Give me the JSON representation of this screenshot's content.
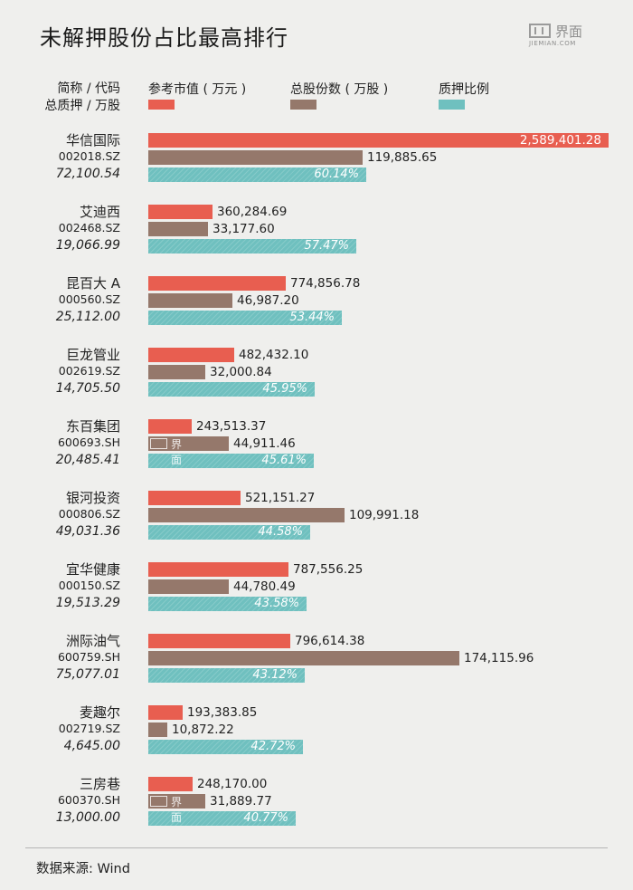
{
  "title": "未解押股份占比最高排行",
  "logo": {
    "cn": "界面",
    "en": "JIEMIAN.COM"
  },
  "header": {
    "line1": "简称 / 代码",
    "line2": "总质押 / 万股"
  },
  "legend": [
    {
      "label": "参考市值 ( 万元 )",
      "color": "#e85e50"
    },
    {
      "label": "总股份数 ( 万股 )",
      "color": "#95786b"
    },
    {
      "label": "质押比例",
      "color": "#6fc0bf"
    }
  ],
  "chart_data": {
    "type": "bar",
    "orientation": "horizontal",
    "title": "未解押股份占比最高排行",
    "series": [
      {
        "name": "参考市值 ( 万元 )",
        "color": "#e85e50",
        "values": [
          2589401.28,
          360284.69,
          774856.78,
          482432.1,
          243513.37,
          521151.27,
          787556.25,
          796614.38,
          193383.85,
          248170.0
        ],
        "labels": [
          "2,589,401.28",
          "360,284.69",
          "774,856.78",
          "482,432.10",
          "243,513.37",
          "521,151.27",
          "787,556.25",
          "796,614.38",
          "193,383.85",
          "248,170.00"
        ]
      },
      {
        "name": "总股份数 ( 万股 )",
        "color": "#95786b",
        "values": [
          119885.65,
          33177.6,
          46987.2,
          32000.84,
          44911.46,
          109991.18,
          44780.49,
          174115.96,
          10872.22,
          31889.77
        ],
        "labels": [
          "119,885.65",
          "33,177.60",
          "46,987.20",
          "32,000.84",
          "44,911.46",
          "109,991.18",
          "44,780.49",
          "174,115.96",
          "10,872.22",
          "31,889.77"
        ]
      },
      {
        "name": "质押比例",
        "color": "#6fc0bf",
        "values": [
          60.14,
          57.47,
          53.44,
          45.95,
          45.61,
          44.58,
          43.58,
          43.12,
          42.72,
          40.77
        ],
        "labels": [
          "60.14%",
          "57.47%",
          "53.44%",
          "45.95%",
          "45.61%",
          "44.58%",
          "43.58%",
          "43.12%",
          "42.72%",
          "40.77%"
        ]
      }
    ],
    "rows": [
      {
        "name": "华信国际",
        "code": "002018.SZ",
        "pledged": "72,100.54"
      },
      {
        "name": "艾迪西",
        "code": "002468.SZ",
        "pledged": "19,066.99"
      },
      {
        "name": "昆百大 A",
        "code": "000560.SZ",
        "pledged": "25,112.00"
      },
      {
        "name": "巨龙管业",
        "code": "002619.SZ",
        "pledged": "14,705.50"
      },
      {
        "name": "东百集团",
        "code": "600693.SH",
        "pledged": "20,485.41"
      },
      {
        "name": "银河投资",
        "code": "000806.SZ",
        "pledged": "49,031.36"
      },
      {
        "name": "宜华健康",
        "code": "000150.SZ",
        "pledged": "19,513.29"
      },
      {
        "name": "洲际油气",
        "code": "600759.SH",
        "pledged": "75,077.01"
      },
      {
        "name": "麦趣尔",
        "code": "002719.SZ",
        "pledged": "4,645.00"
      },
      {
        "name": "三房巷",
        "code": "600370.SH",
        "pledged": "13,000.00"
      }
    ],
    "watermark_rows": [
      4,
      9
    ],
    "watermark_text": "界面"
  },
  "source": "数据来源: Wind"
}
